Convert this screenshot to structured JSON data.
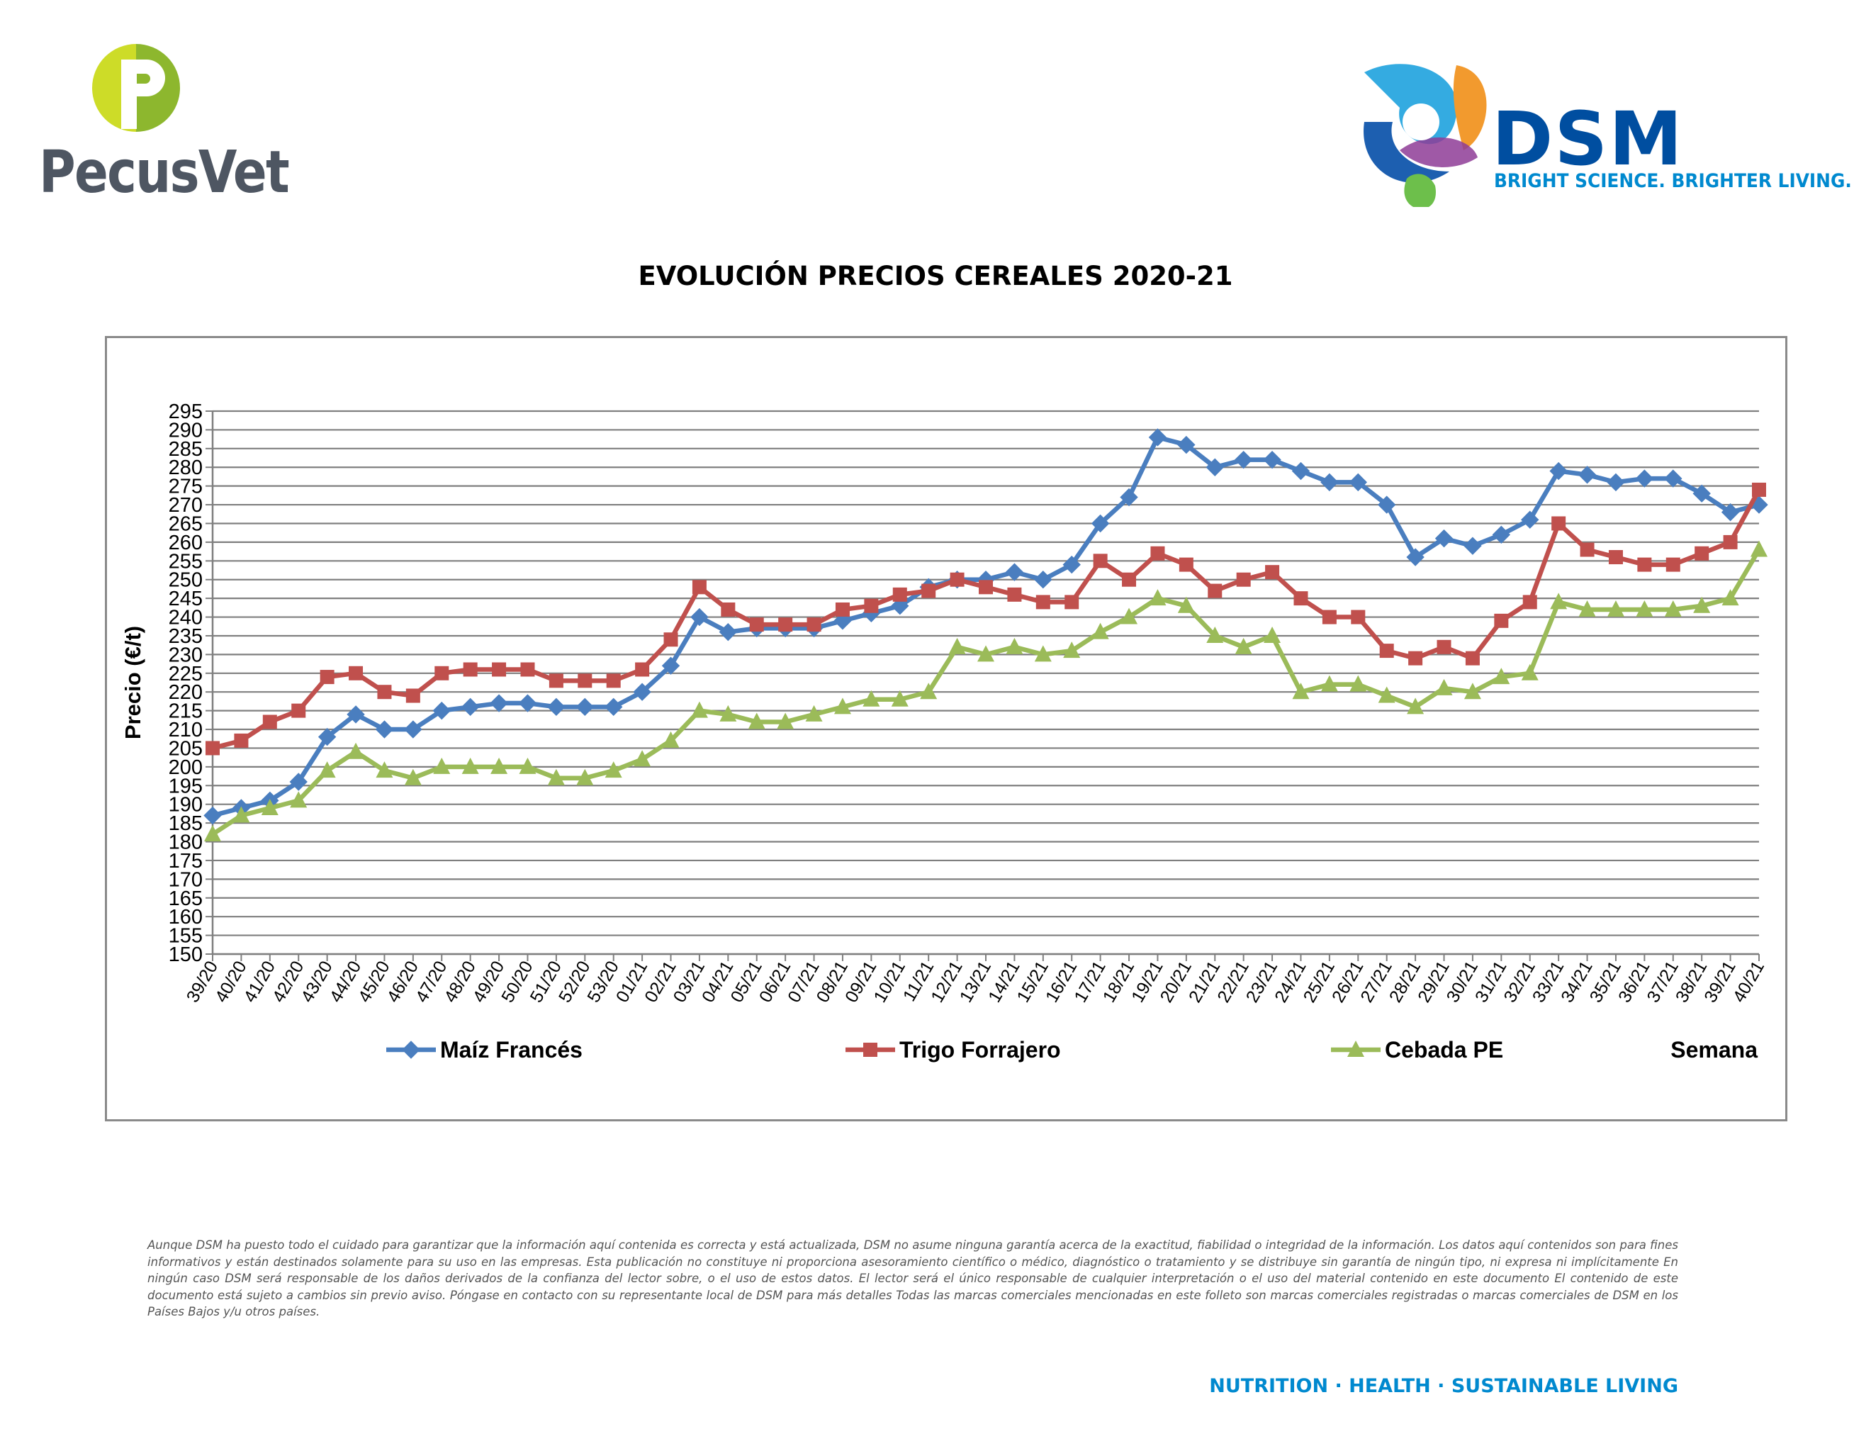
{
  "header": {
    "left_logo": {
      "name": "PecusVet",
      "icon": "pecusvet-p-logo"
    },
    "right_logo": {
      "name": "DSM",
      "tagline": "BRIGHT SCIENCE. BRIGHTER LIVING.",
      "icon": "dsm-swirl-logo"
    }
  },
  "colors": {
    "maiz": "#4a7ebf",
    "trigo": "#c0504d",
    "cebada": "#9bbb59",
    "brand_blue": "#004ea0",
    "brand_light": "#0089cf"
  },
  "chart_data": {
    "type": "line",
    "title": "EVOLUCIÓN PRECIOS CEREALES 2020-21",
    "ylabel": "Precio (€/t)",
    "xlabel": "Semana",
    "ylim": [
      150,
      295
    ],
    "ystep": 5,
    "grid": true,
    "legend_position": "bottom",
    "x": [
      "39/20",
      "40/20",
      "41/20",
      "42/20",
      "43/20",
      "44/20",
      "45/20",
      "46/20",
      "47/20",
      "48/20",
      "49/20",
      "50/20",
      "51/20",
      "52/20",
      "53/20",
      "01/21",
      "02/21",
      "03/21",
      "04/21",
      "05/21",
      "06/21",
      "07/21",
      "08/21",
      "09/21",
      "10/21",
      "11/21",
      "12/21",
      "13/21",
      "14/21",
      "15/21",
      "16/21",
      "17/21",
      "18/21",
      "19/21",
      "20/21",
      "21/21",
      "22/21",
      "23/21",
      "24/21",
      "25/21",
      "26/21",
      "27/21",
      "28/21",
      "29/21",
      "30/21",
      "31/21",
      "32/21",
      "33/21",
      "34/21",
      "35/21",
      "36/21",
      "37/21",
      "38/21",
      "39/21",
      "40/21"
    ],
    "series": [
      {
        "name": "Maíz Francés",
        "marker": "diamond",
        "color": "#4a7ebf",
        "values": [
          187,
          189,
          191,
          196,
          208,
          214,
          210,
          210,
          215,
          216,
          217,
          217,
          216,
          216,
          216,
          220,
          227,
          240,
          236,
          237,
          237,
          237,
          239,
          241,
          243,
          248,
          250,
          250,
          252,
          250,
          254,
          265,
          272,
          288,
          286,
          280,
          282,
          282,
          279,
          276,
          276,
          270,
          256,
          261,
          259,
          262,
          266,
          279,
          278,
          276,
          277,
          277,
          273,
          268,
          270
        ]
      },
      {
        "name": "Trigo Forrajero",
        "marker": "square",
        "color": "#c0504d",
        "values": [
          205,
          207,
          212,
          215,
          224,
          225,
          220,
          219,
          225,
          226,
          226,
          226,
          223,
          223,
          223,
          226,
          234,
          248,
          242,
          238,
          238,
          238,
          242,
          243,
          246,
          247,
          250,
          248,
          246,
          244,
          244,
          255,
          250,
          257,
          254,
          247,
          250,
          252,
          245,
          240,
          240,
          231,
          229,
          232,
          229,
          239,
          244,
          265,
          258,
          256,
          254,
          254,
          257,
          260,
          274
        ]
      },
      {
        "name": "Cebada PE",
        "marker": "triangle",
        "color": "#9bbb59",
        "values": [
          182,
          187,
          189,
          191,
          199,
          204,
          199,
          197,
          200,
          200,
          200,
          200,
          197,
          197,
          199,
          202,
          207,
          215,
          214,
          212,
          212,
          214,
          216,
          218,
          218,
          220,
          232,
          230,
          232,
          230,
          231,
          236,
          240,
          245,
          243,
          235,
          232,
          235,
          220,
          222,
          222,
          219,
          216,
          221,
          220,
          224,
          225,
          244,
          242,
          242,
          242,
          242,
          243,
          245,
          258
        ]
      }
    ]
  },
  "footer": {
    "disclaimer": "Aunque DSM ha puesto todo el cuidado para garantizar que la información aquí contenida es correcta y está actualizada, DSM no asume ninguna garantía acerca de la exactitud, fiabilidad o integridad de la información. Los datos aquí contenidos son para fines informativos y están destinados solamente para su uso en las empresas. Esta publicación no constituye ni proporciona asesoramiento científico o médico, diagnóstico o tratamiento y se distribuye sin garantía de ningún tipo, ni expresa ni implícitamente En ningún caso DSM será responsable de los daños derivados de la confianza del lector sobre, o el uso de estos datos. El lector será el único responsable de cualquier interpretación o el uso del material contenido en este documento El contenido de este documento está sujeto a cambios sin previo aviso. Póngase en contacto con su representante local de DSM para más detalles Todas las marcas comerciales mencionadas en este folleto son marcas comerciales registradas o marcas comerciales de DSM en los Países Bajos y/u otros países.",
    "tagline": "NUTRITION · HEALTH · SUSTAINABLE LIVING"
  }
}
